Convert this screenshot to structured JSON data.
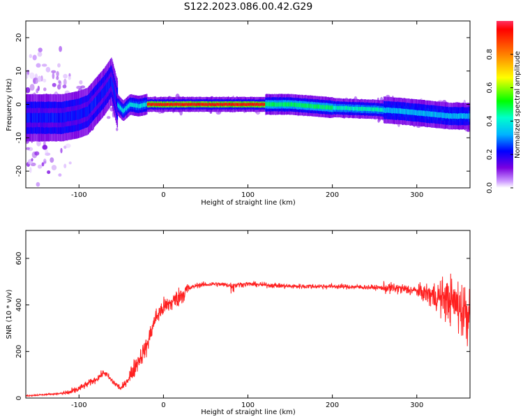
{
  "title": "S122.2023.086.00.42.G29",
  "chart_data": [
    {
      "type": "heatmap",
      "xlabel": "Height of straight line (km)",
      "ylabel": "Frequency (Hz)",
      "xlim": [
        -163,
        363
      ],
      "ylim": [
        -25,
        25
      ],
      "x_ticks": [
        -100,
        0,
        100,
        200,
        300
      ],
      "y_ticks": [
        -20,
        -10,
        0,
        10,
        20
      ],
      "colorbar": {
        "label": "Normalized spectral amplitude",
        "range": [
          0,
          1
        ],
        "ticks": [
          "0.0",
          "0.2",
          "0.4",
          "0.6",
          "0.8"
        ],
        "colormap": [
          "#ffffff",
          "#cc99ff",
          "#7a00e0",
          "#0000ff",
          "#00b4ff",
          "#00ffcc",
          "#00ff00",
          "#ffff00",
          "#ff8000",
          "#ff0000"
        ]
      },
      "ridge": {
        "x": [
          -120,
          -100,
          -90,
          -80,
          -70,
          -62,
          -55,
          -48,
          -40,
          -30,
          -20,
          -10,
          0,
          50,
          100,
          150,
          200,
          250,
          280,
          300,
          320,
          340,
          360
        ],
        "y": [
          -4,
          -3,
          -2,
          1,
          4,
          7,
          0,
          -2,
          0,
          -0.5,
          0,
          0,
          0,
          0,
          0,
          0,
          -1,
          -1.5,
          -2,
          -2.5,
          -3,
          -3.5,
          -3.5
        ]
      }
    },
    {
      "type": "line",
      "xlabel": "Height of straight line (km)",
      "ylabel": "SNR (10 * v/v)",
      "xlim": [
        -163,
        363
      ],
      "ylim": [
        0,
        720
      ],
      "x_ticks": [
        -100,
        0,
        100,
        200,
        300
      ],
      "y_ticks": [
        0,
        200,
        400,
        600
      ],
      "color": "#ff2020",
      "series": [
        {
          "x": [
            -163,
            -140,
            -120,
            -110,
            -100,
            -90,
            -80,
            -70,
            -60,
            -50,
            -40,
            -30,
            -20,
            -10,
            0,
            10,
            20,
            30,
            40,
            60,
            80,
            100,
            150,
            200,
            250,
            280,
            300,
            320,
            340,
            355,
            363
          ],
          "y": [
            10,
            15,
            20,
            25,
            40,
            60,
            80,
            110,
            70,
            40,
            90,
            160,
            220,
            340,
            390,
            410,
            440,
            470,
            485,
            490,
            485,
            490,
            480,
            480,
            475,
            470,
            460,
            440,
            420,
            380,
            360
          ]
        }
      ]
    }
  ]
}
